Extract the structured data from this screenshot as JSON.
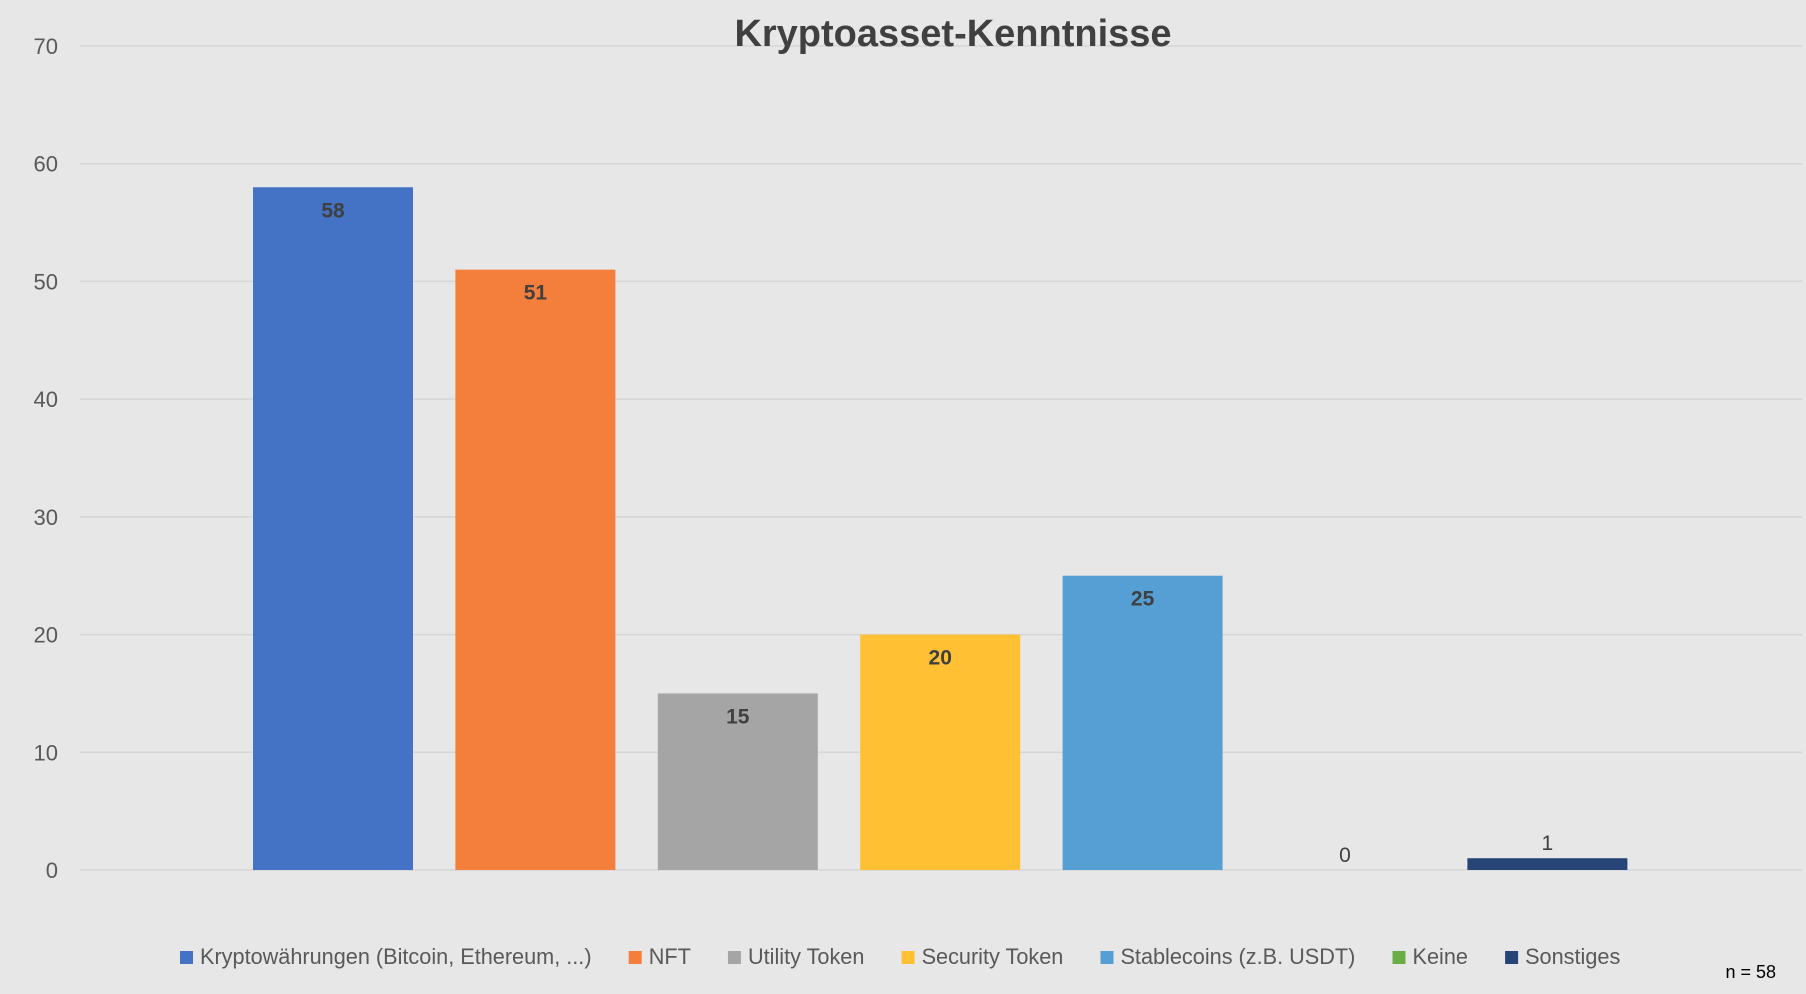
{
  "chart_data": {
    "type": "bar",
    "title": "Kryptoasset-Kenntnisse",
    "categories": [
      "Kryptowährungen (Bitcoin, Ethereum, ...)",
      "NFT",
      "Utility Token",
      "Security Token",
      "Stablecoins (z.B. USDT)",
      "Keine",
      "Sonstiges"
    ],
    "values": [
      58,
      51,
      15,
      20,
      25,
      0,
      1
    ],
    "colors": [
      "#4472c4",
      "#f47e3b",
      "#a5a5a5",
      "#ffc133",
      "#569fd4",
      "#6aad45",
      "#264478"
    ],
    "ylim": [
      0,
      70
    ],
    "yticks": [
      0,
      10,
      20,
      30,
      40,
      50,
      60,
      70
    ],
    "grid": true,
    "legend_position": "bottom",
    "note": "n = 58"
  }
}
